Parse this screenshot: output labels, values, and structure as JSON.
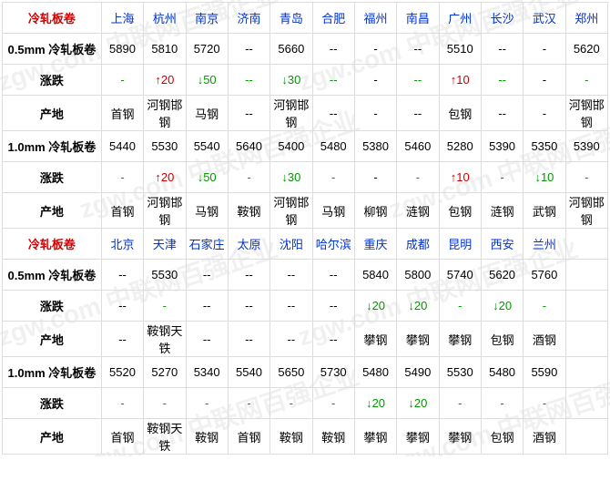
{
  "colors": {
    "header_red": "#d00000",
    "header_blue": "#0033cc",
    "up": "#d00000",
    "down": "#009900",
    "border": "#dddddd",
    "background": "#ffffff",
    "watermark": "rgba(0,0,0,0.06)"
  },
  "section1": {
    "title": "冷轧板卷",
    "cities": [
      "上海",
      "杭州",
      "南京",
      "济南",
      "青岛",
      "合肥",
      "福州",
      "南昌",
      "广州",
      "长沙",
      "武汉",
      "郑州"
    ],
    "rows": [
      {
        "label": "0.5mm 冷轧板卷",
        "cells": [
          {
            "t": "5890"
          },
          {
            "t": "5810"
          },
          {
            "t": "5720"
          },
          {
            "t": "--"
          },
          {
            "t": "5660"
          },
          {
            "t": "--"
          },
          {
            "t": "-"
          },
          {
            "t": "--"
          },
          {
            "t": "5510"
          },
          {
            "t": "--"
          },
          {
            "t": "-"
          },
          {
            "t": "5620"
          }
        ]
      },
      {
        "label": "涨跌",
        "cells": [
          {
            "t": "-",
            "c": "dash-green"
          },
          {
            "t": "↑20",
            "c": "up"
          },
          {
            "t": "↓50",
            "c": "down"
          },
          {
            "t": "--",
            "c": "dash-green"
          },
          {
            "t": "↓30",
            "c": "down"
          },
          {
            "t": "--",
            "c": "dash-green"
          },
          {
            "t": "-",
            "c": "dash"
          },
          {
            "t": "--",
            "c": "dash-green"
          },
          {
            "t": "↑10",
            "c": "up"
          },
          {
            "t": "--",
            "c": "dash-green"
          },
          {
            "t": "-",
            "c": "dash"
          },
          {
            "t": "-",
            "c": "dash-green"
          }
        ]
      },
      {
        "label": "产地",
        "cells": [
          {
            "t": "首钢"
          },
          {
            "t": "河钢邯钢"
          },
          {
            "t": "马钢"
          },
          {
            "t": "--"
          },
          {
            "t": "河钢邯钢"
          },
          {
            "t": "--"
          },
          {
            "t": "-"
          },
          {
            "t": "--"
          },
          {
            "t": "包钢"
          },
          {
            "t": "--"
          },
          {
            "t": "-"
          },
          {
            "t": "河钢邯钢"
          }
        ]
      },
      {
        "label": "1.0mm 冷轧板卷",
        "cells": [
          {
            "t": "5440"
          },
          {
            "t": "5530"
          },
          {
            "t": "5540"
          },
          {
            "t": "5640"
          },
          {
            "t": "5400"
          },
          {
            "t": "5480"
          },
          {
            "t": "5380"
          },
          {
            "t": "5460"
          },
          {
            "t": "5280"
          },
          {
            "t": "5390"
          },
          {
            "t": "5350"
          },
          {
            "t": "5390"
          }
        ]
      },
      {
        "label": "涨跌",
        "cells": [
          {
            "t": "-",
            "c": "dash-green"
          },
          {
            "t": "↑20",
            "c": "up"
          },
          {
            "t": "↓50",
            "c": "down"
          },
          {
            "t": "-",
            "c": "dash-green"
          },
          {
            "t": "↓30",
            "c": "down"
          },
          {
            "t": "-",
            "c": "dash-green"
          },
          {
            "t": "-",
            "c": "dash"
          },
          {
            "t": "-",
            "c": "dash-green"
          },
          {
            "t": "↑10",
            "c": "up"
          },
          {
            "t": "-",
            "c": "dash-green"
          },
          {
            "t": "↓10",
            "c": "down"
          },
          {
            "t": "-",
            "c": "dash-green"
          }
        ]
      },
      {
        "label": "产地",
        "cells": [
          {
            "t": "首钢"
          },
          {
            "t": "河钢邯钢"
          },
          {
            "t": "马钢"
          },
          {
            "t": "鞍钢"
          },
          {
            "t": "河钢邯钢"
          },
          {
            "t": "马钢"
          },
          {
            "t": "柳钢"
          },
          {
            "t": "涟钢"
          },
          {
            "t": "包钢"
          },
          {
            "t": "涟钢"
          },
          {
            "t": "武钢"
          },
          {
            "t": "河钢邯钢"
          }
        ]
      }
    ]
  },
  "section2": {
    "title": "冷轧板卷",
    "cities": [
      "北京",
      "天津",
      "石家庄",
      "太原",
      "沈阳",
      "哈尔滨",
      "重庆",
      "成都",
      "昆明",
      "西安",
      "兰州",
      ""
    ],
    "rows": [
      {
        "label": "0.5mm 冷轧板卷",
        "cells": [
          {
            "t": "--"
          },
          {
            "t": "5530"
          },
          {
            "t": "--"
          },
          {
            "t": "--"
          },
          {
            "t": "--"
          },
          {
            "t": "--"
          },
          {
            "t": "5840"
          },
          {
            "t": "5800"
          },
          {
            "t": "5740"
          },
          {
            "t": "5620"
          },
          {
            "t": "5760"
          },
          {
            "t": ""
          }
        ]
      },
      {
        "label": "涨跌",
        "cells": [
          {
            "t": "--",
            "c": "dash"
          },
          {
            "t": "-",
            "c": "dash-green"
          },
          {
            "t": "--",
            "c": "dash"
          },
          {
            "t": "--",
            "c": "dash"
          },
          {
            "t": "--",
            "c": "dash"
          },
          {
            "t": "--",
            "c": "dash"
          },
          {
            "t": "↓20",
            "c": "down"
          },
          {
            "t": "↓20",
            "c": "down"
          },
          {
            "t": "-",
            "c": "dash-green"
          },
          {
            "t": "↓20",
            "c": "down"
          },
          {
            "t": "-",
            "c": "dash-green"
          },
          {
            "t": ""
          }
        ]
      },
      {
        "label": "产地",
        "cells": [
          {
            "t": "--"
          },
          {
            "t": "鞍钢天铁"
          },
          {
            "t": "--"
          },
          {
            "t": "--"
          },
          {
            "t": "--"
          },
          {
            "t": "--"
          },
          {
            "t": "攀钢"
          },
          {
            "t": "攀钢"
          },
          {
            "t": "攀钢"
          },
          {
            "t": "包钢"
          },
          {
            "t": "酒钢"
          },
          {
            "t": ""
          }
        ]
      },
      {
        "label": "1.0mm 冷轧板卷",
        "cells": [
          {
            "t": "5520"
          },
          {
            "t": "5270"
          },
          {
            "t": "5340"
          },
          {
            "t": "5540"
          },
          {
            "t": "5650"
          },
          {
            "t": "5730"
          },
          {
            "t": "5480"
          },
          {
            "t": "5490"
          },
          {
            "t": "5530"
          },
          {
            "t": "5480"
          },
          {
            "t": "5590"
          },
          {
            "t": ""
          }
        ]
      },
      {
        "label": "涨跌",
        "cells": [
          {
            "t": "-",
            "c": "dash-green"
          },
          {
            "t": "-",
            "c": "dash-green"
          },
          {
            "t": "-",
            "c": "dash-green"
          },
          {
            "t": "-",
            "c": "dash-green"
          },
          {
            "t": "-",
            "c": "dash-green"
          },
          {
            "t": "-",
            "c": "dash-green"
          },
          {
            "t": "↓20",
            "c": "down"
          },
          {
            "t": "↓20",
            "c": "down"
          },
          {
            "t": "-",
            "c": "dash-green"
          },
          {
            "t": "-",
            "c": "dash-green"
          },
          {
            "t": "-",
            "c": "dash-green"
          },
          {
            "t": ""
          }
        ]
      },
      {
        "label": "产地",
        "cells": [
          {
            "t": "首钢"
          },
          {
            "t": "鞍钢天铁"
          },
          {
            "t": "鞍钢"
          },
          {
            "t": "首钢"
          },
          {
            "t": "鞍钢"
          },
          {
            "t": "鞍钢"
          },
          {
            "t": "攀钢"
          },
          {
            "t": "攀钢"
          },
          {
            "t": "攀钢"
          },
          {
            "t": "包钢"
          },
          {
            "t": "酒钢"
          },
          {
            "t": ""
          }
        ]
      }
    ]
  }
}
